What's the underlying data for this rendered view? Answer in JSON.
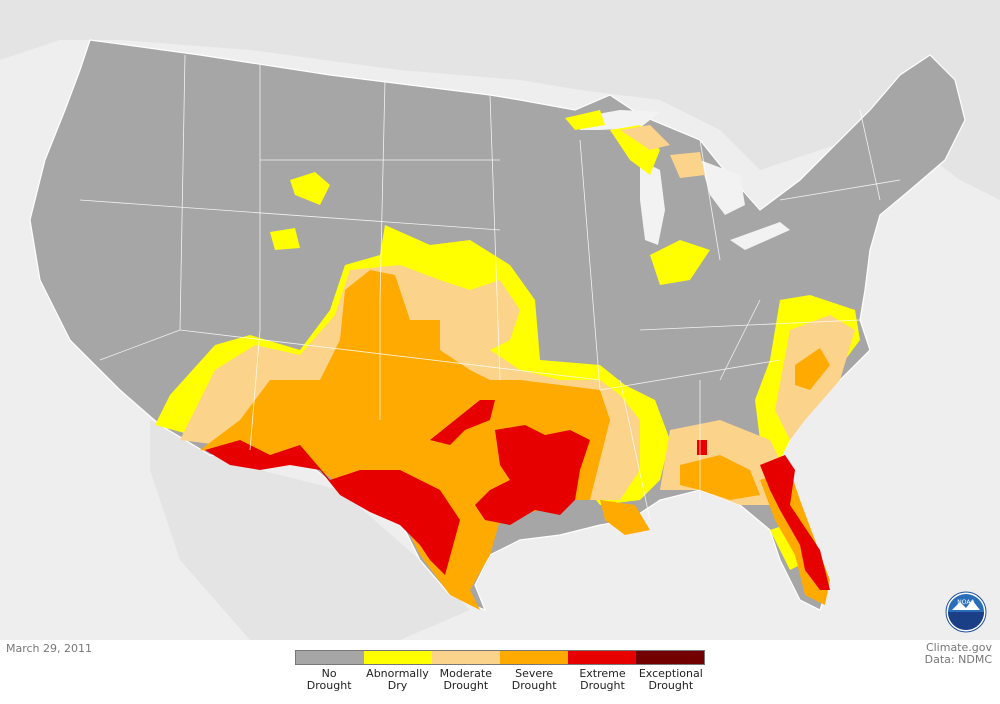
{
  "map": {
    "date": "March 29, 2011",
    "credit_line1": "Climate.gov",
    "credit_line2": "Data: NDMC",
    "logo_text": "NOAA"
  },
  "legend": {
    "items": [
      {
        "label": "No\nDrought",
        "color": "#a6a6a6"
      },
      {
        "label": "Abnormally\nDry",
        "color": "#ffff00"
      },
      {
        "label": "Moderate\nDrought",
        "color": "#fcd38a"
      },
      {
        "label": "Severe\nDrought",
        "color": "#ffaa00"
      },
      {
        "label": "Extreme\nDrought",
        "color": "#e60000"
      },
      {
        "label": "Exceptional\nDrought",
        "color": "#730000"
      }
    ]
  },
  "colors": {
    "background_land": "#e6e6e6",
    "water": "#f2f2f2",
    "state_border": "#ffffff"
  }
}
